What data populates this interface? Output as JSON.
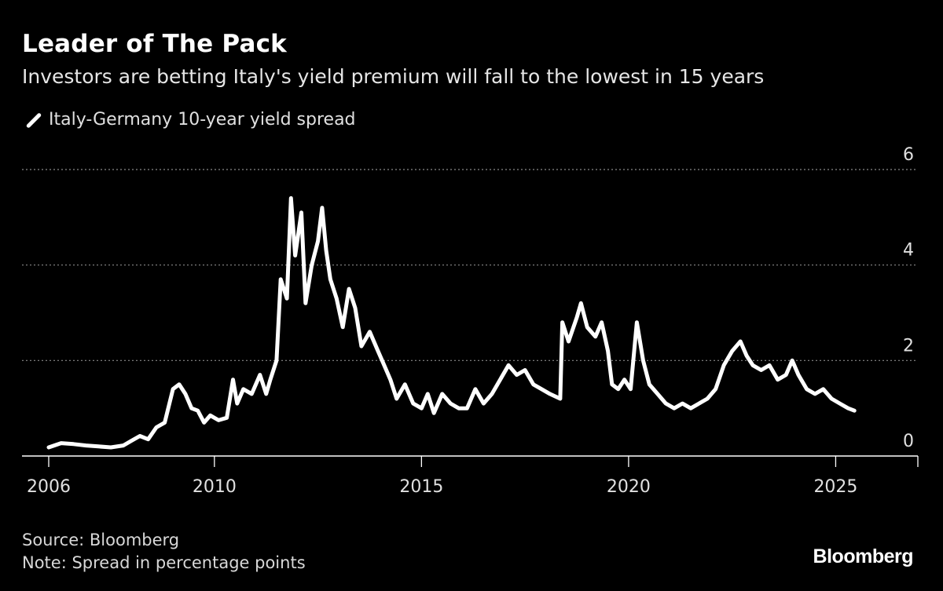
{
  "header": {
    "title": "Leader of The Pack",
    "subtitle": "Investors are betting Italy's yield premium will fall to the lowest in 15 years"
  },
  "footer": {
    "source": "Source: Bloomberg",
    "note": "Note: Spread in percentage points",
    "logo": "Bloomberg"
  },
  "colors": {
    "background": "#000000",
    "line": "#ffffff",
    "grid": "#8a8a8a",
    "axis": "#ffffff"
  },
  "chart_data": {
    "type": "line",
    "title": "Leader of The Pack",
    "subtitle": "Investors are betting Italy's yield premium will fall to the lowest in 15 years",
    "xlabel": "",
    "ylabel": "",
    "xlim": [
      2006.0,
      2027.0
    ],
    "ylim": [
      0,
      6
    ],
    "x_ticks": [
      2006,
      2010,
      2015,
      2020,
      2025
    ],
    "x_tick_labels": [
      "2006",
      "2010",
      "2015",
      "2020",
      "2025"
    ],
    "y_ticks": [
      0,
      2,
      4,
      6
    ],
    "y_tick_labels": [
      "0",
      "2",
      "4",
      "6"
    ],
    "grid": "horizontal dotted",
    "y_axis_position": "right",
    "legend": "top-left",
    "series": [
      {
        "name": "Italy-Germany 10-year yield spread",
        "color": "#ffffff",
        "points": [
          [
            2006.0,
            0.18
          ],
          [
            2006.3,
            0.27
          ],
          [
            2006.6,
            0.25
          ],
          [
            2006.9,
            0.22
          ],
          [
            2007.2,
            0.2
          ],
          [
            2007.5,
            0.18
          ],
          [
            2007.8,
            0.22
          ],
          [
            2008.0,
            0.32
          ],
          [
            2008.2,
            0.42
          ],
          [
            2008.4,
            0.35
          ],
          [
            2008.6,
            0.6
          ],
          [
            2008.8,
            0.7
          ],
          [
            2009.0,
            1.4
          ],
          [
            2009.15,
            1.5
          ],
          [
            2009.3,
            1.3
          ],
          [
            2009.45,
            1.0
          ],
          [
            2009.6,
            0.95
          ],
          [
            2009.75,
            0.7
          ],
          [
            2009.9,
            0.85
          ],
          [
            2010.1,
            0.75
          ],
          [
            2010.3,
            0.8
          ],
          [
            2010.45,
            1.6
          ],
          [
            2010.55,
            1.1
          ],
          [
            2010.7,
            1.4
          ],
          [
            2010.9,
            1.3
          ],
          [
            2011.1,
            1.7
          ],
          [
            2011.25,
            1.3
          ],
          [
            2011.35,
            1.6
          ],
          [
            2011.5,
            2.0
          ],
          [
            2011.6,
            3.7
          ],
          [
            2011.75,
            3.3
          ],
          [
            2011.85,
            5.4
          ],
          [
            2011.95,
            4.2
          ],
          [
            2012.1,
            5.1
          ],
          [
            2012.2,
            3.2
          ],
          [
            2012.35,
            4.0
          ],
          [
            2012.5,
            4.5
          ],
          [
            2012.6,
            5.2
          ],
          [
            2012.7,
            4.3
          ],
          [
            2012.8,
            3.7
          ],
          [
            2012.95,
            3.3
          ],
          [
            2013.1,
            2.7
          ],
          [
            2013.25,
            3.5
          ],
          [
            2013.4,
            3.1
          ],
          [
            2013.55,
            2.3
          ],
          [
            2013.75,
            2.6
          ],
          [
            2013.95,
            2.2
          ],
          [
            2014.1,
            1.9
          ],
          [
            2014.25,
            1.6
          ],
          [
            2014.4,
            1.2
          ],
          [
            2014.6,
            1.5
          ],
          [
            2014.8,
            1.1
          ],
          [
            2015.0,
            1.0
          ],
          [
            2015.15,
            1.3
          ],
          [
            2015.3,
            0.9
          ],
          [
            2015.5,
            1.3
          ],
          [
            2015.7,
            1.1
          ],
          [
            2015.9,
            1.0
          ],
          [
            2016.1,
            1.0
          ],
          [
            2016.3,
            1.4
          ],
          [
            2016.5,
            1.1
          ],
          [
            2016.7,
            1.3
          ],
          [
            2016.9,
            1.6
          ],
          [
            2017.1,
            1.9
          ],
          [
            2017.3,
            1.7
          ],
          [
            2017.5,
            1.8
          ],
          [
            2017.7,
            1.5
          ],
          [
            2017.9,
            1.4
          ],
          [
            2018.1,
            1.3
          ],
          [
            2018.35,
            1.2
          ],
          [
            2018.4,
            2.8
          ],
          [
            2018.55,
            2.4
          ],
          [
            2018.75,
            2.9
          ],
          [
            2018.85,
            3.2
          ],
          [
            2019.0,
            2.7
          ],
          [
            2019.2,
            2.5
          ],
          [
            2019.35,
            2.8
          ],
          [
            2019.5,
            2.2
          ],
          [
            2019.6,
            1.5
          ],
          [
            2019.75,
            1.4
          ],
          [
            2019.9,
            1.6
          ],
          [
            2020.05,
            1.4
          ],
          [
            2020.2,
            2.8
          ],
          [
            2020.35,
            2.0
          ],
          [
            2020.5,
            1.5
          ],
          [
            2020.7,
            1.3
          ],
          [
            2020.9,
            1.1
          ],
          [
            2021.1,
            1.0
          ],
          [
            2021.3,
            1.1
          ],
          [
            2021.5,
            1.0
          ],
          [
            2021.7,
            1.1
          ],
          [
            2021.9,
            1.2
          ],
          [
            2022.1,
            1.4
          ],
          [
            2022.3,
            1.9
          ],
          [
            2022.5,
            2.2
          ],
          [
            2022.7,
            2.4
          ],
          [
            2022.85,
            2.1
          ],
          [
            2023.0,
            1.9
          ],
          [
            2023.2,
            1.8
          ],
          [
            2023.4,
            1.9
          ],
          [
            2023.6,
            1.6
          ],
          [
            2023.8,
            1.7
          ],
          [
            2023.95,
            2.0
          ],
          [
            2024.1,
            1.7
          ],
          [
            2024.3,
            1.4
          ],
          [
            2024.5,
            1.3
          ],
          [
            2024.7,
            1.4
          ],
          [
            2024.9,
            1.2
          ],
          [
            2025.1,
            1.1
          ],
          [
            2025.3,
            1.0
          ],
          [
            2025.45,
            0.95
          ]
        ]
      }
    ],
    "source": "Source: Bloomberg",
    "note": "Note: Spread in percentage points"
  }
}
